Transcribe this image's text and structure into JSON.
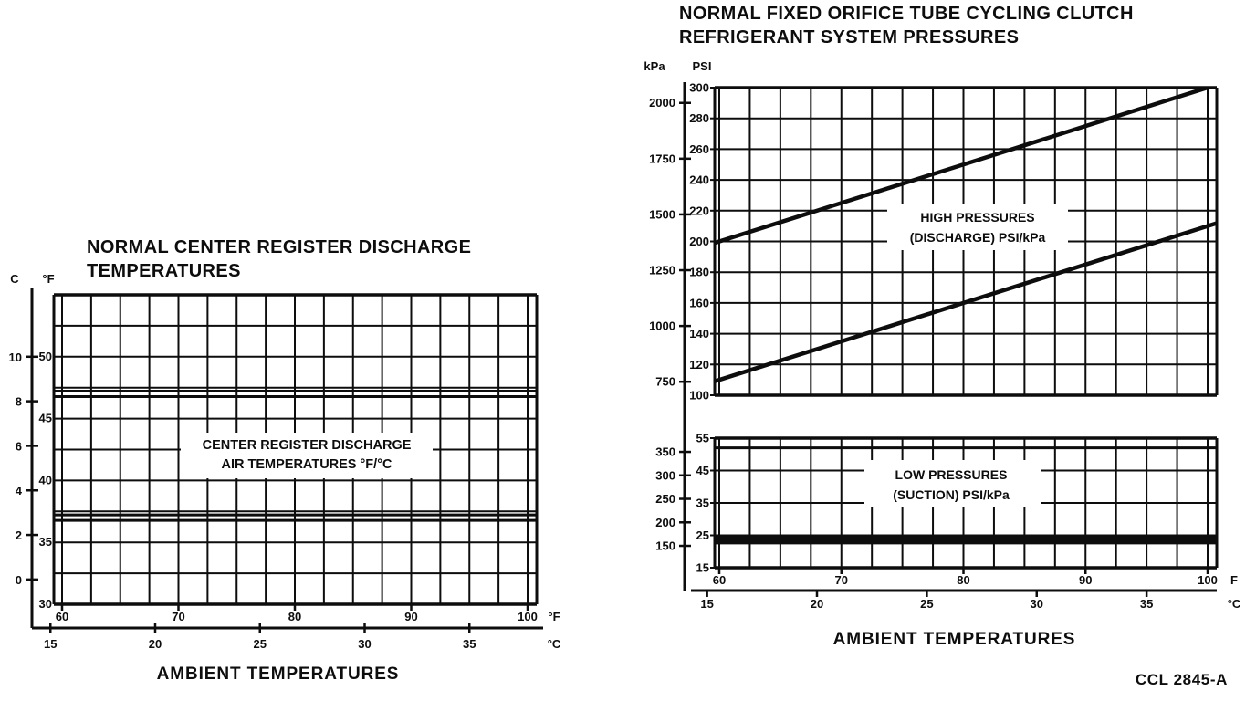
{
  "document": {
    "code_label": "CCL 2845-A",
    "colors": {
      "ink": "#0d0d0d",
      "paper": "#ffffff"
    }
  },
  "left_chart": {
    "title_lines": [
      "NORMAL CENTER REGISTER DISCHARGE",
      "TEMPERATURES"
    ],
    "xlabel": "AMBIENT TEMPERATURES"
  },
  "right_chart": {
    "title_lines": [
      "NORMAL FIXED ORIFICE TUBE CYCLING CLUTCH",
      "REFRIGERANT SYSTEM PRESSURES"
    ],
    "xlabel": "AMBIENT TEMPERATURES"
  },
  "chart_data": [
    {
      "id": "center-register-discharge-temperatures",
      "type": "line",
      "title": "NORMAL CENTER REGISTER DISCHARGE TEMPERATURES",
      "xlabel": "AMBIENT TEMPERATURES",
      "annotation_lines": [
        "CENTER REGISTER DISCHARGE",
        "AIR TEMPERATURES °F/°C"
      ],
      "grid": true,
      "x_axis": {
        "unit_f": "°F",
        "unit_c": "°C",
        "ticks_f": [
          60,
          70,
          80,
          90,
          100
        ],
        "ticks_c": [
          15,
          20,
          25,
          30,
          35
        ],
        "range_f": [
          60,
          100
        ],
        "grid_step_f": 2.5
      },
      "y_axis": {
        "unit_f": "°F",
        "unit_c": "C",
        "ticks_f": [
          30,
          35,
          40,
          45,
          50
        ],
        "ticks_c": [
          0,
          2,
          4,
          6,
          8,
          10
        ],
        "range_f": [
          30,
          55
        ],
        "grid_step_f": 2.5
      },
      "series": [
        {
          "name": "discharge-air-temp-upper-limit",
          "style": "double-line",
          "x_f": [
            60,
            100
          ],
          "y_f": [
            47,
            47
          ]
        },
        {
          "name": "discharge-air-temp-lower-limit",
          "style": "double-line",
          "x_f": [
            60,
            100
          ],
          "y_f": [
            37,
            37
          ]
        }
      ]
    },
    {
      "id": "high-pressures-discharge",
      "type": "line",
      "title": "NORMAL FIXED ORIFICE TUBE CYCLING CLUTCH REFRIGERANT SYSTEM PRESSURES",
      "annotation_lines": [
        "HIGH PRESSURES",
        "(DISCHARGE) PSI/kPa"
      ],
      "grid": true,
      "x_axis": {
        "unit_f": "F",
        "unit_c": "°C",
        "ticks_f": [
          60,
          70,
          80,
          90,
          100
        ],
        "ticks_c": [
          15,
          20,
          25,
          30,
          35
        ],
        "range_f": [
          60,
          100
        ],
        "grid_step_f": 2.5
      },
      "y_axis": {
        "unit_psi": "PSI",
        "unit_kpa": "kPa",
        "ticks_psi": [
          100,
          120,
          140,
          160,
          180,
          200,
          220,
          240,
          260,
          280,
          300
        ],
        "ticks_kpa": [
          750,
          1000,
          1250,
          1500,
          1750,
          2000
        ],
        "range_psi": [
          100,
          300
        ]
      },
      "series": [
        {
          "name": "high-pressure-upper-limit",
          "style": "line",
          "x_f": [
            60,
            100
          ],
          "y_psi": [
            200,
            300
          ]
        },
        {
          "name": "high-pressure-lower-limit",
          "style": "line",
          "x_f": [
            60,
            100
          ],
          "y_psi": [
            110,
            210
          ]
        }
      ]
    },
    {
      "id": "low-pressures-suction",
      "type": "line",
      "title": "NORMAL FIXED ORIFICE TUBE CYCLING CLUTCH REFRIGERANT SYSTEM PRESSURES",
      "xlabel": "AMBIENT TEMPERATURES",
      "annotation_lines": [
        "LOW PRESSURES",
        "(SUCTION) PSI/kPa"
      ],
      "grid": true,
      "x_axis": {
        "unit_f": "F",
        "unit_c": "°C",
        "ticks_f": [
          60,
          70,
          80,
          90,
          100
        ],
        "ticks_c": [
          15,
          20,
          25,
          30,
          35
        ],
        "range_f": [
          60,
          100
        ],
        "grid_step_f": 2.5
      },
      "y_axis": {
        "unit_psi": "PSI",
        "unit_kpa": "kPa",
        "ticks_psi": [
          15,
          25,
          35,
          45,
          55
        ],
        "ticks_kpa": [
          150,
          200,
          250,
          300,
          350
        ],
        "range_psi": [
          15,
          55
        ]
      },
      "series": [
        {
          "name": "low-pressure-upper-limit",
          "style": "line",
          "x_f": [
            60,
            100
          ],
          "y_psi": [
            52,
            52
          ]
        },
        {
          "name": "low-pressure-compressor-cycling-band",
          "style": "thick",
          "x_f": [
            60,
            100
          ],
          "y_psi": [
            23.5,
            23.5
          ]
        }
      ]
    }
  ]
}
